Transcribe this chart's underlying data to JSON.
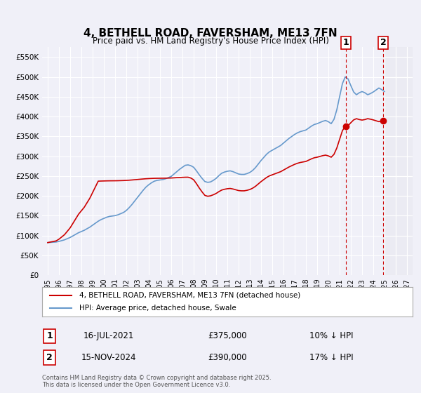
{
  "title": "4, BETHELL ROAD, FAVERSHAM, ME13 7FN",
  "subtitle": "Price paid vs. HM Land Registry's House Price Index (HPI)",
  "xlabel": "",
  "ylabel": "",
  "ylim": [
    0,
    575000
  ],
  "xlim": [
    1994.5,
    2027.5
  ],
  "yticks": [
    0,
    50000,
    100000,
    150000,
    200000,
    250000,
    300000,
    350000,
    400000,
    450000,
    500000,
    550000
  ],
  "ytick_labels": [
    "£0",
    "£50K",
    "£100K",
    "£150K",
    "£200K",
    "£250K",
    "£300K",
    "£350K",
    "£400K",
    "£450K",
    "£500K",
    "£550K"
  ],
  "xticks": [
    1995,
    1996,
    1997,
    1998,
    1999,
    2000,
    2001,
    2002,
    2003,
    2004,
    2005,
    2006,
    2007,
    2008,
    2009,
    2010,
    2011,
    2012,
    2013,
    2014,
    2015,
    2016,
    2017,
    2018,
    2019,
    2020,
    2021,
    2022,
    2023,
    2024,
    2025,
    2026,
    2027
  ],
  "bg_color": "#f0f0f8",
  "plot_bg_color": "#f0f0f8",
  "grid_color": "#ffffff",
  "red_line_color": "#cc0000",
  "blue_line_color": "#6699cc",
  "vline_color": "#cc0000",
  "marker1_x": 2021.54,
  "marker1_y": 375000,
  "marker2_x": 2024.88,
  "marker2_y": 390000,
  "label1_date": "16-JUL-2021",
  "label1_price": "£375,000",
  "label1_hpi": "10% ↓ HPI",
  "label2_date": "15-NOV-2024",
  "label2_price": "£390,000",
  "label2_hpi": "17% ↓ HPI",
  "legend_red": "4, BETHELL ROAD, FAVERSHAM, ME13 7FN (detached house)",
  "legend_blue": "HPI: Average price, detached house, Swale",
  "footnote": "Contains HM Land Registry data © Crown copyright and database right 2025.\nThis data is licensed under the Open Government Licence v3.0.",
  "hpi_data_x": [
    1995.0,
    1995.25,
    1995.5,
    1995.75,
    1996.0,
    1996.25,
    1996.5,
    1996.75,
    1997.0,
    1997.25,
    1997.5,
    1997.75,
    1998.0,
    1998.25,
    1998.5,
    1998.75,
    1999.0,
    1999.25,
    1999.5,
    1999.75,
    2000.0,
    2000.25,
    2000.5,
    2000.75,
    2001.0,
    2001.25,
    2001.5,
    2001.75,
    2002.0,
    2002.25,
    2002.5,
    2002.75,
    2003.0,
    2003.25,
    2003.5,
    2003.75,
    2004.0,
    2004.25,
    2004.5,
    2004.75,
    2005.0,
    2005.25,
    2005.5,
    2005.75,
    2006.0,
    2006.25,
    2006.5,
    2006.75,
    2007.0,
    2007.25,
    2007.5,
    2007.75,
    2008.0,
    2008.25,
    2008.5,
    2008.75,
    2009.0,
    2009.25,
    2009.5,
    2009.75,
    2010.0,
    2010.25,
    2010.5,
    2010.75,
    2011.0,
    2011.25,
    2011.5,
    2011.75,
    2012.0,
    2012.25,
    2012.5,
    2012.75,
    2013.0,
    2013.25,
    2013.5,
    2013.75,
    2014.0,
    2014.25,
    2014.5,
    2014.75,
    2015.0,
    2015.25,
    2015.5,
    2015.75,
    2016.0,
    2016.25,
    2016.5,
    2016.75,
    2017.0,
    2017.25,
    2017.5,
    2017.75,
    2018.0,
    2018.25,
    2018.5,
    2018.75,
    2019.0,
    2019.25,
    2019.5,
    2019.75,
    2020.0,
    2020.25,
    2020.5,
    2020.75,
    2021.0,
    2021.25,
    2021.5,
    2021.75,
    2022.0,
    2022.25,
    2022.5,
    2022.75,
    2023.0,
    2023.25,
    2023.5,
    2023.75,
    2024.0,
    2024.25,
    2024.5,
    2024.75,
    2025.0
  ],
  "hpi_data_y": [
    82000,
    82500,
    83000,
    83500,
    85000,
    87000,
    89000,
    92000,
    95000,
    99000,
    103000,
    107000,
    110000,
    113000,
    117000,
    121000,
    126000,
    131000,
    136000,
    140000,
    143000,
    146000,
    148000,
    149000,
    150000,
    152000,
    155000,
    158000,
    163000,
    170000,
    178000,
    187000,
    196000,
    205000,
    214000,
    222000,
    228000,
    233000,
    237000,
    239000,
    240000,
    241000,
    243000,
    246000,
    249000,
    255000,
    261000,
    267000,
    272000,
    277000,
    278000,
    276000,
    272000,
    263000,
    253000,
    244000,
    236000,
    234000,
    235000,
    239000,
    244000,
    251000,
    257000,
    260000,
    262000,
    263000,
    261000,
    258000,
    255000,
    254000,
    254000,
    256000,
    259000,
    264000,
    271000,
    280000,
    289000,
    297000,
    305000,
    311000,
    315000,
    319000,
    323000,
    327000,
    333000,
    339000,
    345000,
    350000,
    355000,
    359000,
    362000,
    364000,
    366000,
    371000,
    376000,
    380000,
    382000,
    385000,
    388000,
    390000,
    387000,
    382000,
    393000,
    417000,
    450000,
    483000,
    500000,
    495000,
    478000,
    462000,
    455000,
    460000,
    463000,
    460000,
    455000,
    458000,
    462000,
    467000,
    472000,
    468000,
    463000
  ],
  "red_data_x": [
    1995.0,
    1999.5,
    2007.5,
    2009.5,
    2021.54,
    2024.88
  ],
  "red_data_y": [
    82000,
    237000,
    247000,
    200000,
    375000,
    390000
  ]
}
